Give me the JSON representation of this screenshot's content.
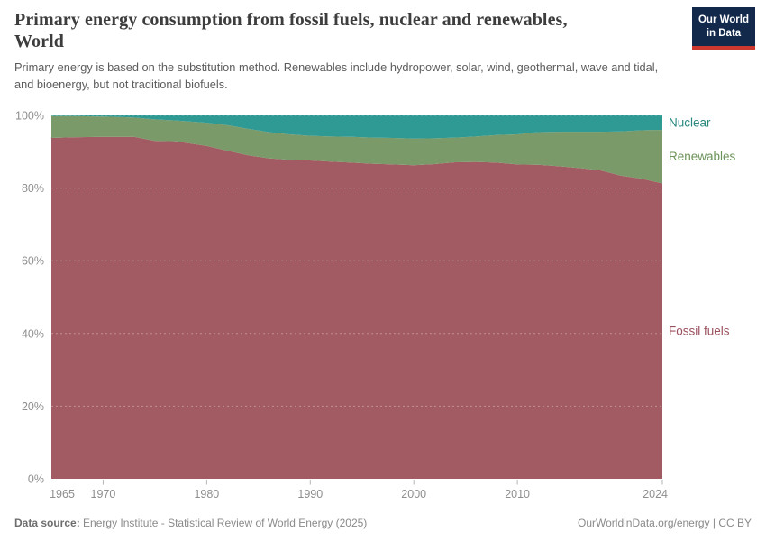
{
  "header": {
    "title_line1": "Primary energy consumption from fossil fuels, nuclear and renewables,",
    "title_line2": "World",
    "subtitle": "Primary energy is based on the substitution method. Renewables include hydropower, solar, wind, geothermal, wave and tidal, and bioenergy, but not traditional biofuels.",
    "logo": {
      "line1": "Our World",
      "line2": "in Data",
      "bg_color": "#12294c",
      "bar_color": "#cd382e"
    }
  },
  "chart_data": {
    "type": "area",
    "stacked_percent": true,
    "title": "Primary energy consumption from fossil fuels, nuclear and renewables, World",
    "xlabel": "",
    "ylabel": "",
    "x_range": [
      1965,
      2024
    ],
    "y_range": [
      0,
      100
    ],
    "grid": "dashed",
    "legend_position": "right-of-plot",
    "x_ticks": [
      1965,
      1970,
      1980,
      1990,
      2000,
      2010,
      2024
    ],
    "y_ticks": [
      0,
      20,
      40,
      60,
      80,
      100
    ],
    "y_tick_suffix": "%",
    "x": [
      1965,
      1967,
      1970,
      1973,
      1975,
      1977,
      1980,
      1982,
      1984,
      1986,
      1988,
      1990,
      1992,
      1994,
      1996,
      1998,
      2000,
      2002,
      2004,
      2006,
      2008,
      2010,
      2012,
      2014,
      2016,
      2018,
      2020,
      2022,
      2023,
      2024
    ],
    "series": [
      {
        "name": "Fossil fuels",
        "color": "#a25b62",
        "label_color": "#9c515e",
        "values": [
          93.8,
          94.0,
          94.1,
          94.1,
          93.0,
          92.9,
          91.6,
          90.3,
          89.0,
          88.2,
          87.8,
          87.6,
          87.3,
          87.0,
          86.7,
          86.5,
          86.3,
          86.6,
          87.1,
          87.2,
          87.0,
          86.5,
          86.4,
          86.0,
          85.5,
          84.9,
          83.4,
          82.6,
          81.9,
          81.3
        ]
      },
      {
        "name": "Renewables",
        "color": "#7a9b69",
        "label_color": "#6b9258",
        "values": [
          6.0,
          5.8,
          5.6,
          5.3,
          5.9,
          5.7,
          6.4,
          7.0,
          7.3,
          7.2,
          7.0,
          6.8,
          6.9,
          7.1,
          7.2,
          7.3,
          7.3,
          7.1,
          6.8,
          7.0,
          7.6,
          8.3,
          9.0,
          9.5,
          10.0,
          10.6,
          12.2,
          13.3,
          14.1,
          14.7
        ]
      },
      {
        "name": "Nuclear",
        "color": "#2f9a94",
        "label_color": "#27877e",
        "values": [
          0.2,
          0.2,
          0.3,
          0.6,
          1.1,
          1.4,
          2.0,
          2.7,
          3.7,
          4.6,
          5.2,
          5.6,
          5.8,
          5.9,
          6.1,
          6.2,
          6.4,
          6.3,
          6.1,
          5.8,
          5.4,
          5.2,
          4.6,
          4.5,
          4.5,
          4.5,
          4.4,
          4.1,
          4.0,
          4.0
        ]
      }
    ]
  },
  "footer": {
    "data_source_label": "Data source:",
    "data_source": "Energy Institute - Statistical Review of World Energy (2025)",
    "attribution": "OurWorldinData.org/energy | CC BY"
  }
}
